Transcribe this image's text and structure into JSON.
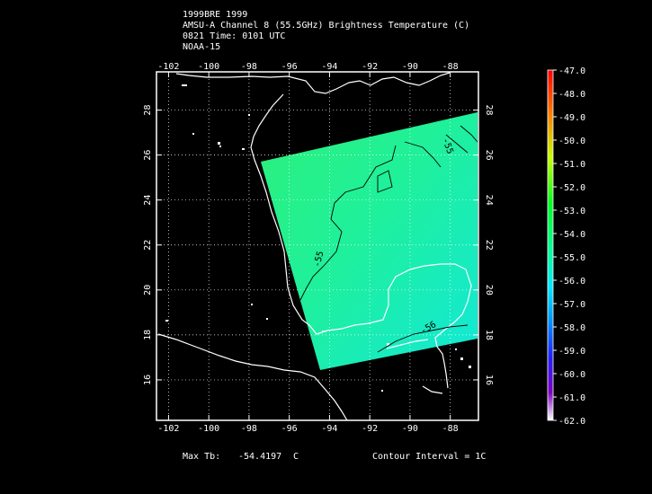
{
  "header": {
    "line1": "1999BRE 1999",
    "line2": "AMSU-A Channel 8 (55.5GHz) Brightness Temperature (C)",
    "line3": "0821 Time: 0101 UTC",
    "line4": "NOAA-15"
  },
  "map": {
    "lon_ticks": [
      -102,
      -100,
      -98,
      -96,
      -94,
      -92,
      -90,
      -88
    ],
    "lat_ticks": [
      16,
      18,
      20,
      22,
      24,
      26,
      28
    ],
    "lon_range": [
      -102.6,
      -86.6
    ],
    "lat_range": [
      14.2,
      29.7
    ],
    "swath_color": "#22f08a",
    "contours": [
      {
        "label": "-55",
        "value": -55
      },
      {
        "label": "-55",
        "value": -55
      },
      {
        "label": "-56",
        "value": -56
      }
    ]
  },
  "colorbar": {
    "labels": [
      "-47.0",
      "-48.0",
      "-49.0",
      "-50.0",
      "-51.0",
      "-52.0",
      "-53.0",
      "-54.0",
      "-55.0",
      "-56.0",
      "-57.0",
      "-58.0",
      "-59.0",
      "-60.0",
      "-61.0",
      "-62.0"
    ]
  },
  "footer": {
    "max_label": "Max Tb:",
    "max_value": "-54.4197",
    "max_unit": "C",
    "contour_interval": "Contour Interval = 1C"
  }
}
